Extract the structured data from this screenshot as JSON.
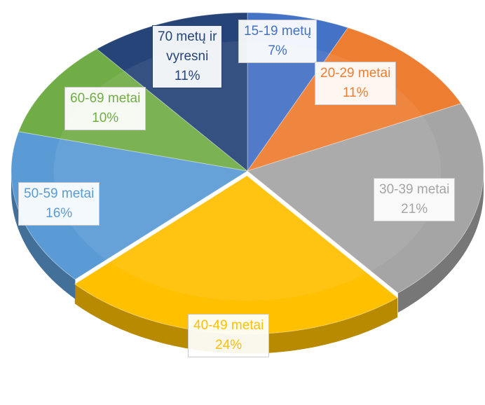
{
  "chart_data": {
    "type": "pie",
    "title": "",
    "slices": [
      {
        "label": "15-19 metų",
        "value": 7,
        "display": "7%",
        "color": "#4472C4",
        "text_color": "#4472C4"
      },
      {
        "label": "20-29 metai",
        "value": 11,
        "display": "11%",
        "color": "#ED7D31",
        "text_color": "#ED7D31"
      },
      {
        "label": "30-39 metai",
        "value": 21,
        "display": "21%",
        "color": "#A5A5A5",
        "text_color": "#A5A5A5"
      },
      {
        "label": "40-49 metai",
        "value": 24,
        "display": "24%",
        "color": "#FFC000",
        "text_color": "#FFC000"
      },
      {
        "label": "50-59 metai",
        "value": 16,
        "display": "16%",
        "color": "#5B9BD5",
        "text_color": "#5B9BD5"
      },
      {
        "label": "60-69 metai",
        "value": 10,
        "display": "10%",
        "color": "#70AD47",
        "text_color": "#70AD47"
      },
      {
        "label_lines": [
          "70 metų ir",
          "vyresni"
        ],
        "label": "70 metų ir vyresni",
        "value": 11,
        "display": "11%",
        "color": "#264478",
        "text_color": "#264478"
      }
    ],
    "style": "3d-exploded",
    "legend": "none",
    "data_labels": "category-and-percent"
  }
}
